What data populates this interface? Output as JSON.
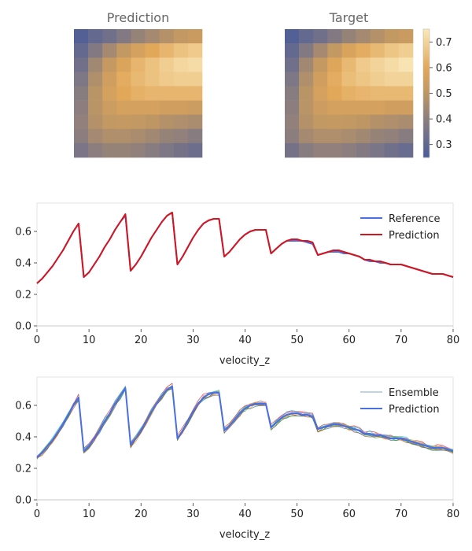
{
  "chart_data": [
    {
      "type": "heatmap",
      "title": "Prediction",
      "rows": 9,
      "cols": 9,
      "values": [
        [
          0.27,
          0.31,
          0.34,
          0.38,
          0.42,
          0.45,
          0.48,
          0.51,
          0.53
        ],
        [
          0.31,
          0.38,
          0.45,
          0.51,
          0.56,
          0.6,
          0.63,
          0.66,
          0.68
        ],
        [
          0.34,
          0.44,
          0.52,
          0.58,
          0.63,
          0.66,
          0.69,
          0.71,
          0.72
        ],
        [
          0.37,
          0.47,
          0.55,
          0.61,
          0.64,
          0.66,
          0.68,
          0.69,
          0.69
        ],
        [
          0.39,
          0.49,
          0.56,
          0.6,
          0.62,
          0.63,
          0.63,
          0.63,
          0.63
        ],
        [
          0.4,
          0.49,
          0.54,
          0.56,
          0.56,
          0.56,
          0.55,
          0.55,
          0.54
        ],
        [
          0.41,
          0.48,
          0.51,
          0.52,
          0.51,
          0.5,
          0.48,
          0.47,
          0.46
        ],
        [
          0.4,
          0.45,
          0.47,
          0.47,
          0.46,
          0.44,
          0.42,
          0.41,
          0.39
        ],
        [
          0.36,
          0.4,
          0.42,
          0.42,
          0.41,
          0.39,
          0.37,
          0.35,
          0.33
        ]
      ]
    },
    {
      "type": "heatmap",
      "title": "Target",
      "rows": 9,
      "cols": 9,
      "values": [
        [
          0.27,
          0.31,
          0.34,
          0.38,
          0.42,
          0.45,
          0.48,
          0.51,
          0.53
        ],
        [
          0.31,
          0.38,
          0.45,
          0.51,
          0.57,
          0.61,
          0.64,
          0.67,
          0.69
        ],
        [
          0.34,
          0.44,
          0.52,
          0.59,
          0.64,
          0.68,
          0.7,
          0.72,
          0.74
        ],
        [
          0.37,
          0.47,
          0.55,
          0.61,
          0.65,
          0.67,
          0.69,
          0.7,
          0.7
        ],
        [
          0.39,
          0.49,
          0.56,
          0.6,
          0.62,
          0.63,
          0.64,
          0.64,
          0.64
        ],
        [
          0.4,
          0.49,
          0.54,
          0.56,
          0.56,
          0.56,
          0.56,
          0.55,
          0.55
        ],
        [
          0.41,
          0.48,
          0.51,
          0.52,
          0.51,
          0.5,
          0.48,
          0.47,
          0.46
        ],
        [
          0.4,
          0.45,
          0.47,
          0.47,
          0.46,
          0.44,
          0.42,
          0.41,
          0.39
        ],
        [
          0.35,
          0.39,
          0.41,
          0.41,
          0.4,
          0.38,
          0.36,
          0.34,
          0.32
        ]
      ],
      "colorbar": {
        "min": 0.25,
        "max": 0.75,
        "ticks": [
          "0.3",
          "0.4",
          "0.5",
          "0.6",
          "0.7"
        ],
        "tick_values": [
          0.3,
          0.4,
          0.5,
          0.6,
          0.7
        ]
      }
    },
    {
      "type": "line",
      "xlabel": "velocity_z",
      "xlim": [
        0,
        80
      ],
      "ylim": [
        -0.02,
        0.78
      ],
      "xticks": [
        "0",
        "10",
        "20",
        "30",
        "40",
        "50",
        "60",
        "70",
        "80"
      ],
      "xtick_values": [
        0,
        10,
        20,
        30,
        40,
        50,
        60,
        70,
        80
      ],
      "yticks": [
        "0.0",
        "0.2",
        "0.4",
        "0.6"
      ],
      "ytick_values": [
        0.0,
        0.2,
        0.4,
        0.6
      ],
      "legend_position": "top-right",
      "series": [
        {
          "name": "Reference",
          "color": "#4a6fe3",
          "x": [
            0,
            1,
            2,
            3,
            4,
            5,
            6,
            7,
            8,
            9,
            10,
            11,
            12,
            13,
            14,
            15,
            16,
            17,
            18,
            19,
            20,
            21,
            22,
            23,
            24,
            25,
            26,
            27,
            28,
            29,
            30,
            31,
            32,
            33,
            34,
            35,
            36,
            37,
            38,
            39,
            40,
            41,
            42,
            43,
            44,
            45,
            46,
            47,
            48,
            49,
            50,
            51,
            52,
            53,
            54,
            55,
            56,
            57,
            58,
            59,
            60,
            61,
            62,
            63,
            64,
            65,
            66,
            67,
            68,
            69,
            70,
            71,
            72,
            73,
            74,
            75,
            76,
            77,
            78,
            79,
            80
          ],
          "y": [
            0.27,
            0.3,
            0.34,
            0.38,
            0.43,
            0.48,
            0.54,
            0.6,
            0.65,
            0.31,
            0.34,
            0.39,
            0.44,
            0.5,
            0.55,
            0.61,
            0.66,
            0.7,
            0.35,
            0.39,
            0.44,
            0.5,
            0.56,
            0.61,
            0.66,
            0.7,
            0.72,
            0.39,
            0.44,
            0.5,
            0.56,
            0.61,
            0.65,
            0.67,
            0.68,
            0.68,
            0.44,
            0.47,
            0.51,
            0.55,
            0.58,
            0.6,
            0.61,
            0.61,
            0.61,
            0.46,
            0.49,
            0.52,
            0.54,
            0.54,
            0.54,
            0.54,
            0.53,
            0.52,
            0.45,
            0.46,
            0.47,
            0.47,
            0.47,
            0.46,
            0.46,
            0.45,
            0.44,
            0.42,
            0.41,
            0.41,
            0.4,
            0.4,
            0.39,
            0.39,
            0.39,
            0.38,
            0.37,
            0.36,
            0.35,
            0.34,
            0.33,
            0.33,
            0.33,
            0.32,
            0.31
          ]
        },
        {
          "name": "Prediction",
          "color": "#d6141d",
          "x": [
            0,
            1,
            2,
            3,
            4,
            5,
            6,
            7,
            8,
            9,
            10,
            11,
            12,
            13,
            14,
            15,
            16,
            17,
            18,
            19,
            20,
            21,
            22,
            23,
            24,
            25,
            26,
            27,
            28,
            29,
            30,
            31,
            32,
            33,
            34,
            35,
            36,
            37,
            38,
            39,
            40,
            41,
            42,
            43,
            44,
            45,
            46,
            47,
            48,
            49,
            50,
            51,
            52,
            53,
            54,
            55,
            56,
            57,
            58,
            59,
            60,
            61,
            62,
            63,
            64,
            65,
            66,
            67,
            68,
            69,
            70,
            71,
            72,
            73,
            74,
            75,
            76,
            77,
            78,
            79,
            80
          ],
          "y": [
            0.27,
            0.3,
            0.34,
            0.38,
            0.43,
            0.48,
            0.54,
            0.6,
            0.65,
            0.31,
            0.34,
            0.39,
            0.44,
            0.5,
            0.55,
            0.61,
            0.66,
            0.71,
            0.35,
            0.39,
            0.44,
            0.5,
            0.56,
            0.61,
            0.66,
            0.7,
            0.72,
            0.39,
            0.44,
            0.5,
            0.56,
            0.61,
            0.65,
            0.67,
            0.68,
            0.68,
            0.44,
            0.47,
            0.51,
            0.55,
            0.58,
            0.6,
            0.61,
            0.61,
            0.61,
            0.46,
            0.49,
            0.52,
            0.54,
            0.55,
            0.55,
            0.54,
            0.54,
            0.53,
            0.45,
            0.46,
            0.47,
            0.48,
            0.48,
            0.47,
            0.46,
            0.45,
            0.44,
            0.42,
            0.42,
            0.41,
            0.41,
            0.4,
            0.39,
            0.39,
            0.39,
            0.38,
            0.37,
            0.36,
            0.35,
            0.34,
            0.33,
            0.33,
            0.33,
            0.32,
            0.31
          ]
        }
      ]
    },
    {
      "type": "line",
      "xlabel": "velocity_z",
      "xlim": [
        0,
        80
      ],
      "ylim": [
        -0.02,
        0.78
      ],
      "xticks": [
        "0",
        "10",
        "20",
        "30",
        "40",
        "50",
        "60",
        "70",
        "80"
      ],
      "xtick_values": [
        0,
        10,
        20,
        30,
        40,
        50,
        60,
        70,
        80
      ],
      "yticks": [
        "0.0",
        "0.2",
        "0.4",
        "0.6"
      ],
      "ytick_values": [
        0.0,
        0.2,
        0.4,
        0.6
      ],
      "legend_position": "top-right",
      "legend": [
        {
          "name": "Ensemble",
          "color": "#7aa8c8"
        },
        {
          "name": "Prediction",
          "color": "#4a6fe3"
        }
      ],
      "ensemble_colors": [
        "#1f77b4",
        "#ff7f0e",
        "#2ca02c",
        "#d62728",
        "#9467bd",
        "#8c564b",
        "#e377c2",
        "#7f7f7f",
        "#bcbd22",
        "#17becf"
      ],
      "ensemble_members": 10,
      "ensemble_spread": 0.025
    }
  ]
}
